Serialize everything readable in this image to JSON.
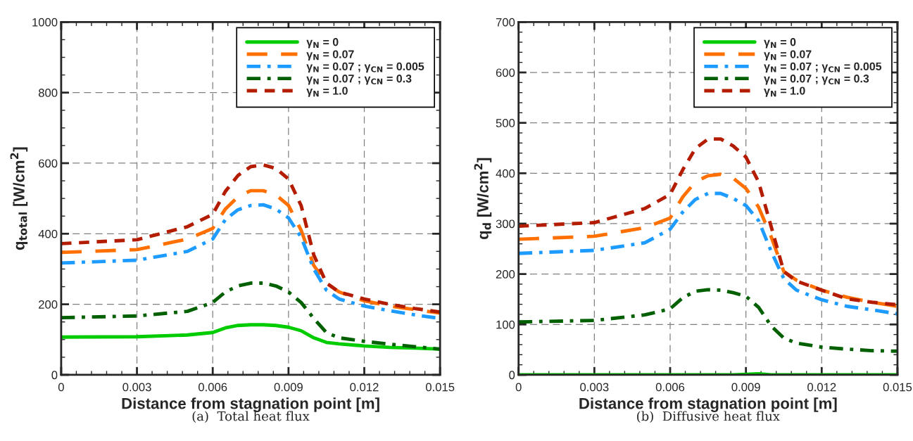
{
  "chart_data": [
    {
      "type": "line",
      "xlabel": "Distance from stagnation point [m]",
      "ylabel": "q$_{total}$ [W/cm$^{2}$]",
      "xlim": [
        0,
        0.015
      ],
      "ylim": [
        0,
        1000
      ],
      "xticks": [
        0,
        0.003,
        0.006,
        0.009,
        0.012,
        0.015
      ],
      "yticks": [
        0,
        200,
        400,
        600,
        800,
        1000
      ],
      "grid": true,
      "legend": "top right",
      "annotations": [
        "(a)  Total heat flux"
      ],
      "x": [
        0,
        0.003,
        0.005,
        0.006,
        0.0065,
        0.007,
        0.0075,
        0.008,
        0.0085,
        0.009,
        0.0095,
        0.01,
        0.0105,
        0.011,
        0.012,
        0.013,
        0.014,
        0.015
      ],
      "series": [
        {
          "name": "γ$_{N}$ = 0",
          "color": "#00cc00",
          "line_style": "solid",
          "values": [
            107,
            108,
            113,
            120,
            133,
            140,
            142,
            142,
            140,
            135,
            125,
            105,
            92,
            88,
            82,
            78,
            76,
            73
          ]
        },
        {
          "name": "γ$_{N}$ = 0.07",
          "color": "#ff7000",
          "line_style": "longdash",
          "values": [
            347,
            355,
            385,
            415,
            470,
            505,
            522,
            522,
            510,
            480,
            410,
            310,
            260,
            235,
            210,
            195,
            185,
            175
          ]
        },
        {
          "name": "γ$_{N}$ = 0.07 ; γ$_{CN}$ = 0.005",
          "color": "#1e9bff",
          "line_style": "dashdot",
          "values": [
            317,
            325,
            350,
            385,
            440,
            468,
            480,
            482,
            470,
            445,
            390,
            300,
            240,
            215,
            195,
            182,
            170,
            160
          ]
        },
        {
          "name": "γ$_{N}$ = 0.07 ; γ$_{CN}$ = 0.3",
          "color": "#006000",
          "line_style": "dashdot",
          "values": [
            162,
            167,
            180,
            205,
            235,
            252,
            260,
            260,
            252,
            235,
            205,
            160,
            120,
            105,
            95,
            87,
            80,
            73
          ]
        },
        {
          "name": "γ$_{N}$ = 1.0",
          "color": "#b41c00",
          "line_style": "dashed",
          "values": [
            372,
            383,
            420,
            455,
            520,
            565,
            590,
            595,
            585,
            555,
            480,
            340,
            260,
            235,
            215,
            200,
            188,
            178
          ]
        }
      ]
    },
    {
      "type": "line",
      "xlabel": "Distance from stagnation point [m]",
      "ylabel": "q$_{d}$ [W/cm$^{2}$]",
      "xlim": [
        0,
        0.015
      ],
      "ylim": [
        0,
        700
      ],
      "xticks": [
        0,
        0.003,
        0.006,
        0.009,
        0.012,
        0.015
      ],
      "yticks": [
        0,
        100,
        200,
        300,
        400,
        500,
        600,
        700
      ],
      "grid": true,
      "legend": "top right",
      "annotations": [
        "(b)  Diffusive heat flux"
      ],
      "x": [
        0,
        0.003,
        0.005,
        0.006,
        0.0065,
        0.007,
        0.0075,
        0.008,
        0.0085,
        0.009,
        0.0095,
        0.01,
        0.0105,
        0.011,
        0.012,
        0.013,
        0.014,
        0.015
      ],
      "series": [
        {
          "name": "γ$_{N}$ = 0",
          "color": "#00cc00",
          "line_style": "solid",
          "values": [
            0,
            0,
            0,
            0,
            0,
            0,
            0,
            0,
            0,
            1,
            2,
            0,
            0,
            0,
            0,
            0,
            0,
            0
          ]
        },
        {
          "name": "γ$_{N}$ = 0.07",
          "color": "#ff7000",
          "line_style": "longdash",
          "values": [
            269,
            275,
            292,
            311,
            353,
            383,
            395,
            398,
            390,
            370,
            333,
            274,
            205,
            188,
            168,
            154,
            144,
            136
          ]
        },
        {
          "name": "γ$_{N}$ = 0.07 ; γ$_{CN}$ = 0.005",
          "color": "#1e9bff",
          "line_style": "dashdot",
          "values": [
            241,
            247,
            262,
            289,
            323,
            348,
            360,
            360,
            350,
            336,
            306,
            245,
            191,
            168,
            149,
            136,
            129,
            121
          ]
        },
        {
          "name": "γ$_{N}$ = 0.07 ; γ$_{CN}$ = 0.3",
          "color": "#006000",
          "line_style": "dashdot",
          "values": [
            105,
            108,
            119,
            131,
            153,
            166,
            169,
            168,
            163,
            156,
            134,
            97,
            73,
            63,
            55,
            51,
            48,
            47
          ]
        },
        {
          "name": "γ$_{N}$ = 1.0",
          "color": "#b41c00",
          "line_style": "dashed",
          "values": [
            295,
            302,
            330,
            358,
            407,
            449,
            468,
            468,
            454,
            432,
            383,
            294,
            205,
            186,
            168,
            151,
            144,
            139
          ]
        }
      ]
    }
  ]
}
